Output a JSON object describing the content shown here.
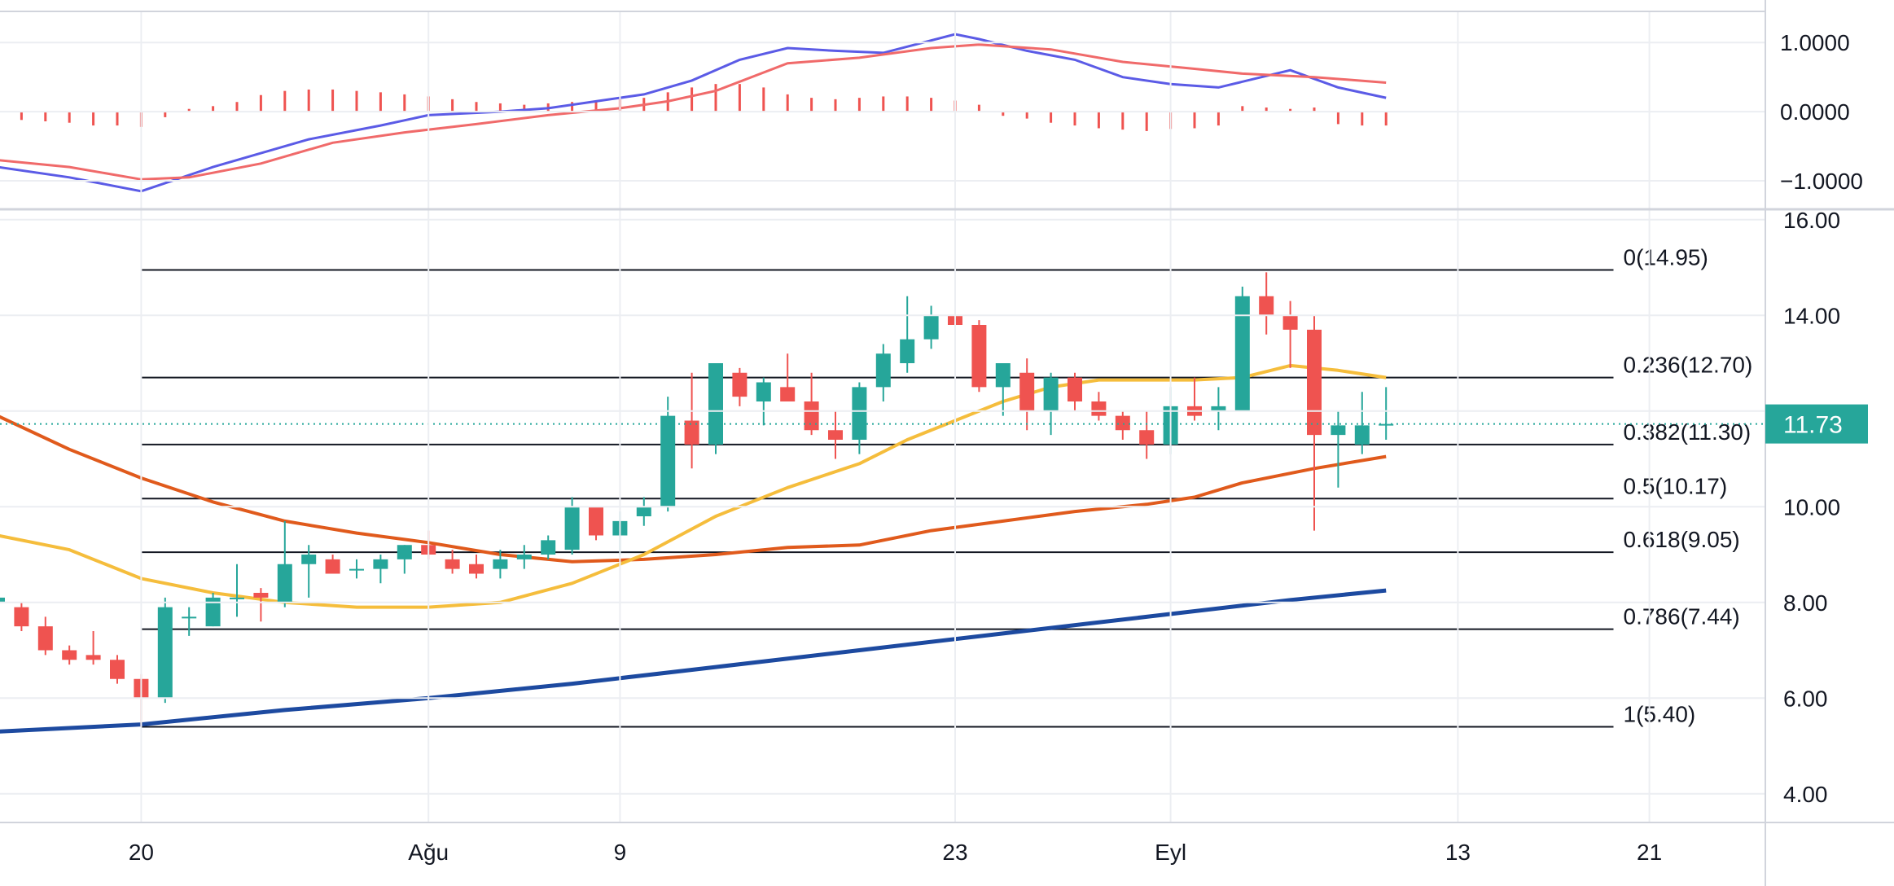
{
  "chart_data": [
    {
      "type": "line",
      "panel": "macd",
      "ylim": [
        -1.4,
        1.45
      ],
      "yticks": [
        1.0,
        0.0,
        -1.0
      ],
      "ytick_labels": [
        "1.0000",
        "0.0000",
        "−1.0000"
      ],
      "x_index_range": [
        0,
        60
      ],
      "series": [
        {
          "color": "#5b5be6",
          "points": [
            [
              0,
              -0.8
            ],
            [
              3,
              -0.95
            ],
            [
              6,
              -1.15
            ],
            [
              9,
              -0.8
            ],
            [
              11,
              -0.6
            ],
            [
              13,
              -0.4
            ],
            [
              16,
              -0.2
            ],
            [
              18,
              -0.05
            ],
            [
              21,
              0.0
            ],
            [
              23,
              0.05
            ],
            [
              25,
              0.15
            ],
            [
              27,
              0.25
            ],
            [
              29,
              0.45
            ],
            [
              31,
              0.75
            ],
            [
              33,
              0.92
            ],
            [
              35,
              0.88
            ],
            [
              37,
              0.85
            ],
            [
              40,
              1.12
            ],
            [
              41,
              1.05
            ],
            [
              43,
              0.88
            ],
            [
              45,
              0.75
            ],
            [
              47,
              0.5
            ],
            [
              49,
              0.4
            ],
            [
              51,
              0.35
            ],
            [
              54,
              0.6
            ],
            [
              56,
              0.35
            ],
            [
              58,
              0.2
            ]
          ]
        },
        {
          "color": "#f06a6a",
          "points": [
            [
              0,
              -0.7
            ],
            [
              3,
              -0.8
            ],
            [
              6,
              -0.98
            ],
            [
              8,
              -0.95
            ],
            [
              11,
              -0.75
            ],
            [
              14,
              -0.45
            ],
            [
              17,
              -0.3
            ],
            [
              20,
              -0.18
            ],
            [
              23,
              -0.05
            ],
            [
              26,
              0.05
            ],
            [
              28,
              0.15
            ],
            [
              30,
              0.3
            ],
            [
              33,
              0.7
            ],
            [
              36,
              0.78
            ],
            [
              39,
              0.92
            ],
            [
              41,
              0.97
            ],
            [
              44,
              0.9
            ],
            [
              47,
              0.72
            ],
            [
              50,
              0.62
            ],
            [
              52,
              0.55
            ],
            [
              55,
              0.5
            ],
            [
              58,
              0.42
            ]
          ]
        }
      ],
      "histogram": [
        [
          0,
          -0.12
        ],
        [
          1,
          -0.12
        ],
        [
          2,
          -0.14
        ],
        [
          3,
          -0.16
        ],
        [
          4,
          -0.2
        ],
        [
          5,
          -0.2
        ],
        [
          6,
          -0.22
        ],
        [
          7,
          -0.08
        ],
        [
          8,
          0.04
        ],
        [
          9,
          0.08
        ],
        [
          10,
          0.14
        ],
        [
          11,
          0.24
        ],
        [
          12,
          0.3
        ],
        [
          13,
          0.32
        ],
        [
          14,
          0.32
        ],
        [
          15,
          0.3
        ],
        [
          16,
          0.28
        ],
        [
          17,
          0.25
        ],
        [
          18,
          0.22
        ],
        [
          19,
          0.18
        ],
        [
          20,
          0.14
        ],
        [
          21,
          0.12
        ],
        [
          22,
          0.1
        ],
        [
          23,
          0.12
        ],
        [
          24,
          0.14
        ],
        [
          25,
          0.14
        ],
        [
          26,
          0.18
        ],
        [
          27,
          0.2
        ],
        [
          28,
          0.28
        ],
        [
          29,
          0.35
        ],
        [
          30,
          0.4
        ],
        [
          31,
          0.4
        ],
        [
          32,
          0.35
        ],
        [
          33,
          0.25
        ],
        [
          34,
          0.2
        ],
        [
          35,
          0.18
        ],
        [
          36,
          0.2
        ],
        [
          37,
          0.22
        ],
        [
          38,
          0.22
        ],
        [
          39,
          0.2
        ],
        [
          40,
          0.16
        ],
        [
          41,
          0.1
        ],
        [
          42,
          -0.06
        ],
        [
          43,
          -0.1
        ],
        [
          44,
          -0.16
        ],
        [
          45,
          -0.2
        ],
        [
          46,
          -0.24
        ],
        [
          47,
          -0.26
        ],
        [
          48,
          -0.28
        ],
        [
          49,
          -0.25
        ],
        [
          50,
          -0.24
        ],
        [
          51,
          -0.2
        ],
        [
          52,
          0.08
        ],
        [
          53,
          0.06
        ],
        [
          54,
          0.04
        ],
        [
          55,
          0.06
        ],
        [
          56,
          -0.18
        ],
        [
          57,
          -0.2
        ],
        [
          58,
          -0.2
        ]
      ]
    },
    {
      "type": "candlestick",
      "panel": "price",
      "ylim": [
        3.4,
        16.2
      ],
      "yticks": [
        16.0,
        14.0,
        10.0,
        8.0,
        6.0,
        4.0
      ],
      "ytick_labels": [
        "16.00",
        "14.00",
        "10.00",
        "8.00",
        "6.00",
        "4.00"
      ],
      "x_index_range": [
        0,
        60
      ],
      "x_tick_labels": [
        {
          "index": 6,
          "label": "20"
        },
        {
          "index": 18,
          "label": "Ağu"
        },
        {
          "index": 26,
          "label": "9"
        },
        {
          "index": 40,
          "label": "23"
        },
        {
          "index": 49,
          "label": "Eyl"
        },
        {
          "index": 61,
          "label": "13"
        },
        {
          "index": 69,
          "label": "21"
        }
      ],
      "candles": [
        [
          0,
          8.0,
          8.3,
          7.8,
          8.1
        ],
        [
          1,
          7.9,
          8.0,
          7.4,
          7.5
        ],
        [
          2,
          7.5,
          7.7,
          6.9,
          7.0
        ],
        [
          3,
          7.0,
          7.1,
          6.7,
          6.8
        ],
        [
          4,
          6.9,
          7.4,
          6.7,
          6.8
        ],
        [
          5,
          6.8,
          6.9,
          6.3,
          6.4
        ],
        [
          6,
          6.4,
          6.5,
          5.4,
          6.0
        ],
        [
          7,
          6.0,
          8.1,
          5.9,
          7.9
        ],
        [
          8,
          7.7,
          7.9,
          7.3,
          7.7
        ],
        [
          9,
          7.5,
          8.2,
          7.5,
          8.1
        ],
        [
          10,
          8.1,
          8.8,
          7.7,
          8.1
        ],
        [
          11,
          8.2,
          8.3,
          7.6,
          8.1
        ],
        [
          12,
          8.0,
          9.7,
          7.9,
          8.8
        ],
        [
          13,
          8.8,
          9.2,
          8.1,
          9.0
        ],
        [
          14,
          8.9,
          9.0,
          8.6,
          8.6
        ],
        [
          15,
          8.7,
          8.9,
          8.5,
          8.7
        ],
        [
          16,
          8.7,
          9.0,
          8.4,
          8.9
        ],
        [
          17,
          8.9,
          9.2,
          8.6,
          9.2
        ],
        [
          18,
          9.2,
          9.5,
          8.9,
          9.0
        ],
        [
          19,
          8.9,
          9.1,
          8.6,
          8.7
        ],
        [
          20,
          8.8,
          9.0,
          8.5,
          8.6
        ],
        [
          21,
          8.7,
          9.1,
          8.5,
          8.9
        ],
        [
          22,
          8.9,
          9.2,
          8.7,
          9.0
        ],
        [
          23,
          9.0,
          9.4,
          8.9,
          9.3
        ],
        [
          24,
          9.1,
          10.2,
          9.0,
          10.0
        ],
        [
          25,
          10.0,
          10.0,
          9.3,
          9.4
        ],
        [
          26,
          9.4,
          9.9,
          9.0,
          9.7
        ],
        [
          27,
          9.8,
          10.2,
          9.6,
          10.0
        ],
        [
          28,
          10.0,
          12.3,
          9.9,
          11.9
        ],
        [
          29,
          11.8,
          12.8,
          10.8,
          11.3
        ],
        [
          30,
          11.3,
          13.0,
          11.1,
          13.0
        ],
        [
          31,
          12.8,
          12.9,
          12.1,
          12.3
        ],
        [
          32,
          12.2,
          12.7,
          11.7,
          12.6
        ],
        [
          33,
          12.5,
          13.2,
          12.2,
          12.2
        ],
        [
          34,
          12.2,
          12.8,
          11.5,
          11.6
        ],
        [
          35,
          11.6,
          12.0,
          11.0,
          11.4
        ],
        [
          36,
          11.4,
          12.6,
          11.1,
          12.5
        ],
        [
          37,
          12.5,
          13.4,
          12.2,
          13.2
        ],
        [
          38,
          13.0,
          14.4,
          12.8,
          13.5
        ],
        [
          39,
          13.5,
          14.2,
          13.3,
          14.0
        ],
        [
          40,
          14.0,
          14.3,
          13.7,
          13.8
        ],
        [
          41,
          13.8,
          13.9,
          12.4,
          12.5
        ],
        [
          42,
          12.5,
          13.0,
          11.9,
          13.0
        ],
        [
          43,
          12.8,
          13.1,
          11.6,
          12.0
        ],
        [
          44,
          12.0,
          12.8,
          11.5,
          12.7
        ],
        [
          45,
          12.7,
          12.8,
          12.0,
          12.2
        ],
        [
          46,
          12.2,
          12.4,
          11.8,
          11.9
        ],
        [
          47,
          11.9,
          12.0,
          11.4,
          11.6
        ],
        [
          48,
          11.6,
          12.0,
          11.0,
          11.3
        ],
        [
          49,
          11.3,
          12.5,
          11.1,
          12.1
        ],
        [
          50,
          12.1,
          12.7,
          11.8,
          11.9
        ],
        [
          51,
          12.0,
          12.5,
          11.6,
          12.1
        ],
        [
          52,
          12.0,
          14.6,
          12.0,
          14.4
        ],
        [
          53,
          14.4,
          14.9,
          13.6,
          14.0
        ],
        [
          54,
          14.0,
          14.3,
          12.9,
          13.7
        ],
        [
          55,
          13.7,
          14.0,
          9.5,
          11.5
        ],
        [
          56,
          11.5,
          12.0,
          10.4,
          11.7
        ],
        [
          57,
          11.3,
          12.4,
          11.1,
          11.7
        ],
        [
          58,
          11.7,
          12.5,
          11.4,
          11.73
        ]
      ],
      "lines": [
        {
          "color": "#e05a1c",
          "points": [
            [
              0,
              11.9
            ],
            [
              3,
              11.2
            ],
            [
              6,
              10.6
            ],
            [
              9,
              10.1
            ],
            [
              12,
              9.7
            ],
            [
              15,
              9.45
            ],
            [
              18,
              9.25
            ],
            [
              21,
              9.0
            ],
            [
              24,
              8.85
            ],
            [
              27,
              8.9
            ],
            [
              30,
              9.0
            ],
            [
              33,
              9.15
            ],
            [
              36,
              9.2
            ],
            [
              39,
              9.5
            ],
            [
              42,
              9.7
            ],
            [
              45,
              9.9
            ],
            [
              48,
              10.05
            ],
            [
              50,
              10.2
            ],
            [
              52,
              10.5
            ],
            [
              55,
              10.8
            ],
            [
              58,
              11.05
            ]
          ]
        },
        {
          "color": "#f5bd3c",
          "points": [
            [
              0,
              9.4
            ],
            [
              3,
              9.1
            ],
            [
              6,
              8.5
            ],
            [
              9,
              8.2
            ],
            [
              12,
              8.0
            ],
            [
              15,
              7.9
            ],
            [
              18,
              7.9
            ],
            [
              21,
              8.0
            ],
            [
              24,
              8.4
            ],
            [
              27,
              9.0
            ],
            [
              30,
              9.8
            ],
            [
              33,
              10.4
            ],
            [
              36,
              10.9
            ],
            [
              38,
              11.4
            ],
            [
              40,
              11.8
            ],
            [
              42,
              12.2
            ],
            [
              44,
              12.5
            ],
            [
              46,
              12.65
            ],
            [
              48,
              12.65
            ],
            [
              50,
              12.65
            ],
            [
              52,
              12.7
            ],
            [
              54,
              12.95
            ],
            [
              56,
              12.85
            ],
            [
              58,
              12.7
            ]
          ]
        },
        {
          "color": "#1d4aa0",
          "points": [
            [
              0,
              5.3
            ],
            [
              6,
              5.45
            ],
            [
              12,
              5.75
            ],
            [
              18,
              6.0
            ],
            [
              24,
              6.3
            ],
            [
              30,
              6.65
            ],
            [
              36,
              7.0
            ],
            [
              42,
              7.35
            ],
            [
              48,
              7.7
            ],
            [
              54,
              8.05
            ],
            [
              58,
              8.25
            ]
          ]
        }
      ],
      "fibonacci": {
        "x_start_index": 6,
        "x_end_index": 67.5,
        "levels": [
          {
            "price": 14.95,
            "label": "0(14.95)"
          },
          {
            "price": 12.7,
            "label": "0.236(12.70)"
          },
          {
            "price": 11.3,
            "label": "0.382(11.30)"
          },
          {
            "price": 10.17,
            "label": "0.5(10.17)"
          },
          {
            "price": 9.05,
            "label": "0.618(9.05)"
          },
          {
            "price": 7.44,
            "label": "0.786(7.44)"
          },
          {
            "price": 5.4,
            "label": "1(5.40)"
          }
        ]
      },
      "last_price": {
        "value": 11.73,
        "label": "11.73",
        "badge_color": "#26a69a"
      }
    }
  ],
  "colors": {
    "up": "#26a69a",
    "down": "#ef5350",
    "grid": "#eceef2",
    "axis_border": "#d1d4dc",
    "fib_line": "#131722",
    "last_price_line": "#26a69a"
  }
}
